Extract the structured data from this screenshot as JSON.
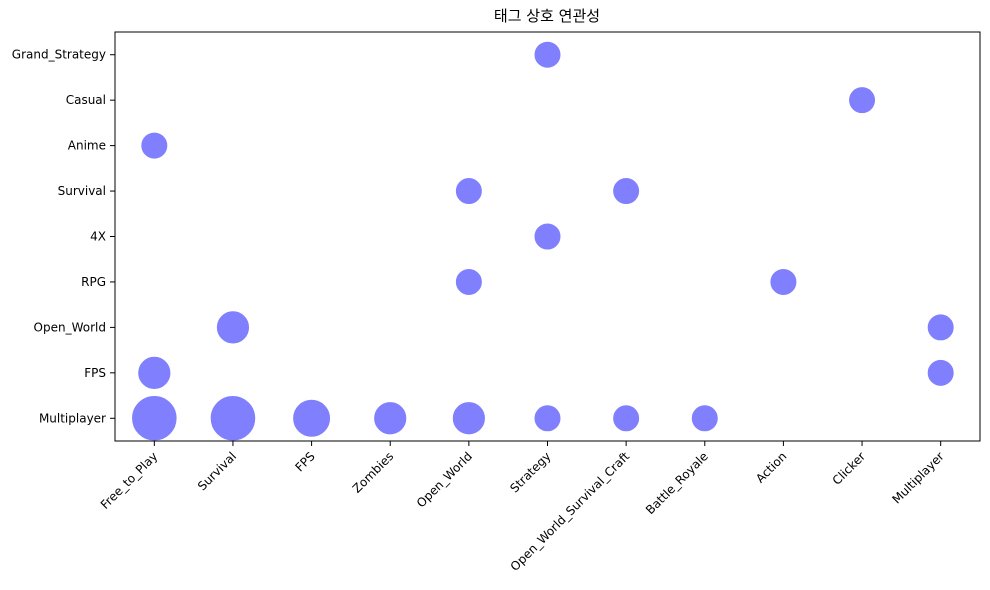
{
  "chart_data": {
    "type": "scatter",
    "title": "태그 상호 연관성",
    "xlabel": "",
    "ylabel": "",
    "x_categories": [
      "Free_to_Play",
      "Survival",
      "FPS",
      "Zombies",
      "Open_World",
      "Strategy",
      "Open_World_Survival_Craft",
      "Battle_Royale",
      "Action",
      "Clicker",
      "Multiplayer"
    ],
    "y_categories": [
      "Multiplayer",
      "FPS",
      "Open_World",
      "RPG",
      "4X",
      "Survival",
      "Anime",
      "Casual",
      "Grand_Strategy"
    ],
    "marker_color": "#8080ff",
    "grid": false,
    "points": [
      {
        "x": "Free_to_Play",
        "y": "Multiplayer",
        "value": 5
      },
      {
        "x": "Survival",
        "y": "Multiplayer",
        "value": 5
      },
      {
        "x": "FPS",
        "y": "Multiplayer",
        "value": 3
      },
      {
        "x": "Zombies",
        "y": "Multiplayer",
        "value": 2
      },
      {
        "x": "Open_World",
        "y": "Multiplayer",
        "value": 2
      },
      {
        "x": "Strategy",
        "y": "Multiplayer",
        "value": 1
      },
      {
        "x": "Open_World_Survival_Craft",
        "y": "Multiplayer",
        "value": 1
      },
      {
        "x": "Battle_Royale",
        "y": "Multiplayer",
        "value": 1
      },
      {
        "x": "Free_to_Play",
        "y": "FPS",
        "value": 2
      },
      {
        "x": "Multiplayer",
        "y": "FPS",
        "value": 1
      },
      {
        "x": "Survival",
        "y": "Open_World",
        "value": 2
      },
      {
        "x": "Multiplayer",
        "y": "Open_World",
        "value": 1
      },
      {
        "x": "Open_World",
        "y": "RPG",
        "value": 1
      },
      {
        "x": "Action",
        "y": "RPG",
        "value": 1
      },
      {
        "x": "Strategy",
        "y": "4X",
        "value": 1
      },
      {
        "x": "Open_World",
        "y": "Survival",
        "value": 1
      },
      {
        "x": "Open_World_Survival_Craft",
        "y": "Survival",
        "value": 1
      },
      {
        "x": "Free_to_Play",
        "y": "Anime",
        "value": 1
      },
      {
        "x": "Clicker",
        "y": "Casual",
        "value": 1
      },
      {
        "x": "Strategy",
        "y": "Grand_Strategy",
        "value": 1
      }
    ]
  }
}
